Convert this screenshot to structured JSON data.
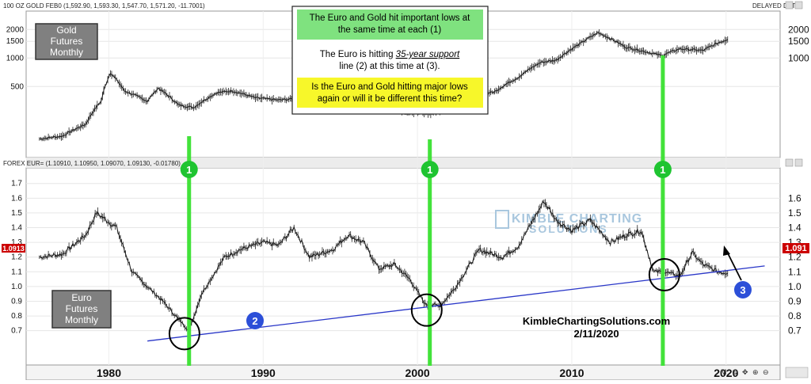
{
  "top_panel": {
    "header": "100 OZ GOLD FEB0 (1,592.90, 1,593.30, 1,547.70, 1,571.20, -11.7001)",
    "delayed": "DELAYED DATA",
    "label": [
      "Gold",
      "Futures",
      "Monthly"
    ]
  },
  "bottom_panel": {
    "header": "FOREX EUR= (1.10910, 1.10950, 1.09070, 1.09130, -0.01780)",
    "label": [
      "Euro",
      "Futures",
      "Monthly"
    ],
    "current_price": "1.0913",
    "current_price_right": "1.091"
  },
  "callout": {
    "line1": [
      "The Euro and Gold hit important lows at",
      "the same time at each (1)"
    ],
    "line2a": "The Euro is hitting ",
    "line2_em": "35-year support",
    "line2b": [
      "line (2) at this time at (3)."
    ],
    "line3": [
      "Is the Euro and Gold hitting major lows",
      "again or will it be different this time?"
    ],
    "highlight_green": "#7fe27f",
    "highlight_yellow": "#f7f72a"
  },
  "badges": {
    "b1": "1",
    "b2": "2",
    "b3": "3",
    "green": "#1fc431",
    "blue": "#2c4fd8"
  },
  "watermark": [
    "KIMBLE CHARTING",
    "SOLUTIONS"
  ],
  "credit": [
    "KimbleChartingSolutions.com",
    "2/11/2020"
  ],
  "toolbar": [
    "M",
    "⚙",
    "✥",
    "⊕",
    "⊖"
  ],
  "chart_data": [
    {
      "type": "line",
      "title": "Gold Futures Monthly",
      "scale": "log",
      "yticks_left": [
        "2000",
        "1500",
        "1000",
        "500"
      ],
      "yticks_right": [
        "2000",
        "1500",
        "1000"
      ],
      "x": [
        1975.5,
        1977,
        1978.5,
        1979.5,
        1980.1,
        1981,
        1982.5,
        1983.2,
        1984.5,
        1985.5,
        1987,
        1988,
        1989.5,
        1991,
        1993,
        1995,
        1996.5,
        1998,
        1999.5,
        2001.2,
        2003,
        2005,
        2006.5,
        2008,
        2009,
        2010.5,
        2011.7,
        2013.5,
        2015.8,
        2017,
        2018.5,
        2019.5,
        2020.1
      ],
      "values": [
        140,
        150,
        200,
        350,
        700,
        450,
        350,
        480,
        320,
        300,
        430,
        450,
        380,
        360,
        380,
        385,
        400,
        290,
        270,
        260,
        380,
        440,
        620,
        900,
        950,
        1400,
        1850,
        1300,
        1060,
        1250,
        1200,
        1450,
        1570
      ],
      "lows": [
        {
          "x": 1985.2,
          "label": "1"
        },
        {
          "x": 2000.8,
          "label": "1"
        },
        {
          "x": 2015.9,
          "label": "1"
        }
      ]
    },
    {
      "type": "line",
      "title": "Euro Futures Monthly",
      "yticks_right": [
        "1.6",
        "1.5",
        "1.4",
        "1.3",
        "1.2",
        "1.1",
        "1.0",
        "0.9",
        "0.8",
        "0.7"
      ],
      "yticks_left": [
        "1.7",
        "1.6",
        "1.5",
        "1.4",
        "1.3",
        "1.2",
        "1.1",
        "1.0",
        "0.9",
        "0.8",
        "0.7"
      ],
      "xticks": [
        "1980",
        "1990",
        "2000",
        "2010",
        "2020"
      ],
      "x": [
        1975.5,
        1977,
        1978.5,
        1979.2,
        1980.5,
        1981.5,
        1982.5,
        1983.5,
        1984.5,
        1985.2,
        1986,
        1987.5,
        1988.5,
        1990,
        1991,
        1992,
        1993,
        1994.5,
        1995.5,
        1996.5,
        1997.5,
        1998.5,
        1999.5,
        2000.5,
        2001.5,
        2002.5,
        2004,
        2005.5,
        2006.5,
        2008.2,
        2009,
        2010,
        2011.2,
        2012.5,
        2013.5,
        2014.5,
        2015.3,
        2016,
        2017,
        2017.8,
        2018.5,
        2019.5,
        2020.1
      ],
      "values": [
        1.2,
        1.22,
        1.35,
        1.5,
        1.4,
        1.1,
        1.0,
        0.9,
        0.78,
        0.7,
        0.95,
        1.2,
        1.25,
        1.3,
        1.28,
        1.4,
        1.2,
        1.25,
        1.35,
        1.3,
        1.12,
        1.15,
        1.05,
        0.88,
        0.87,
        1.0,
        1.25,
        1.2,
        1.27,
        1.58,
        1.45,
        1.38,
        1.45,
        1.3,
        1.35,
        1.38,
        1.1,
        1.1,
        1.07,
        1.23,
        1.15,
        1.1,
        1.09
      ],
      "support_line": {
        "from": {
          "x": 1982.5,
          "y": 0.63
        },
        "to": {
          "x": 2022.5,
          "y": 1.14
        },
        "label": "2"
      },
      "circles": [
        {
          "x": 1984.9,
          "y": 0.68
        },
        {
          "x": 2000.6,
          "y": 0.84
        },
        {
          "x": 2016.0,
          "y": 1.08
        }
      ],
      "point3": {
        "x": 2020.1,
        "y": 1.09,
        "label": "3"
      }
    }
  ]
}
